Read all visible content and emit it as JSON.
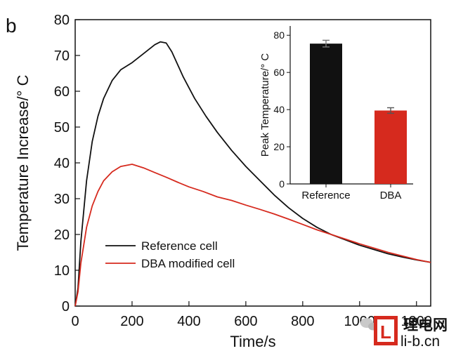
{
  "panel_label": "b",
  "chart_data": [
    {
      "type": "line",
      "xlabel": "Time/s",
      "ylabel": "Temperature Increase/° C",
      "xlim": [
        0,
        1250
      ],
      "ylim": [
        0,
        80
      ],
      "xticks": [
        0,
        200,
        400,
        600,
        800,
        1000,
        1200
      ],
      "yticks": [
        0,
        10,
        20,
        30,
        40,
        50,
        60,
        70,
        80
      ],
      "legend_position": "lower-left",
      "series": [
        {
          "name": "Reference cell",
          "color": "#111111",
          "points": [
            [
              0,
              0
            ],
            [
              10,
              5
            ],
            [
              20,
              18
            ],
            [
              40,
              35
            ],
            [
              60,
              46
            ],
            [
              80,
              53
            ],
            [
              100,
              58
            ],
            [
              130,
              63
            ],
            [
              160,
              66
            ],
            [
              200,
              68
            ],
            [
              240,
              70.5
            ],
            [
              280,
              73
            ],
            [
              300,
              73.8
            ],
            [
              320,
              73.5
            ],
            [
              340,
              71
            ],
            [
              380,
              64
            ],
            [
              420,
              58
            ],
            [
              460,
              53
            ],
            [
              500,
              48.5
            ],
            [
              550,
              43.5
            ],
            [
              600,
              39
            ],
            [
              650,
              35
            ],
            [
              700,
              31
            ],
            [
              750,
              27.5
            ],
            [
              800,
              24.5
            ],
            [
              850,
              22
            ],
            [
              900,
              20
            ],
            [
              950,
              18.5
            ],
            [
              1000,
              17
            ],
            [
              1050,
              15.8
            ],
            [
              1100,
              14.6
            ],
            [
              1150,
              13.7
            ],
            [
              1200,
              12.9
            ],
            [
              1250,
              12.2
            ]
          ]
        },
        {
          "name": "DBA modified cell",
          "color": "#d62a1e",
          "points": [
            [
              0,
              0
            ],
            [
              10,
              4
            ],
            [
              20,
              12
            ],
            [
              40,
              22
            ],
            [
              60,
              28
            ],
            [
              80,
              32
            ],
            [
              100,
              35
            ],
            [
              130,
              37.5
            ],
            [
              160,
              39
            ],
            [
              200,
              39.6
            ],
            [
              240,
              38.6
            ],
            [
              280,
              37.3
            ],
            [
              320,
              36
            ],
            [
              360,
              34.6
            ],
            [
              400,
              33.3
            ],
            [
              450,
              32
            ],
            [
              500,
              30.5
            ],
            [
              550,
              29.5
            ],
            [
              600,
              28.2
            ],
            [
              650,
              27
            ],
            [
              700,
              25.7
            ],
            [
              750,
              24.3
            ],
            [
              800,
              22.8
            ],
            [
              850,
              21.3
            ],
            [
              900,
              20
            ],
            [
              950,
              18.7
            ],
            [
              1000,
              17.4
            ],
            [
              1050,
              16.2
            ],
            [
              1100,
              15
            ],
            [
              1150,
              14
            ],
            [
              1200,
              13
            ],
            [
              1250,
              12.2
            ]
          ]
        }
      ]
    },
    {
      "type": "bar",
      "ylabel": "Peak Temperature/° C",
      "ylim": [
        0,
        85
      ],
      "yticks": [
        0,
        20,
        40,
        60,
        80
      ],
      "categories": [
        "Reference",
        "DBA"
      ],
      "values": [
        75.5,
        39.5
      ],
      "errors": [
        1.8,
        1.5
      ],
      "colors": [
        "#111111",
        "#d62a1e"
      ]
    }
  ],
  "watermark": {
    "cn": "理电网",
    "url": "li-b.cn",
    "logo_letter": "L"
  }
}
